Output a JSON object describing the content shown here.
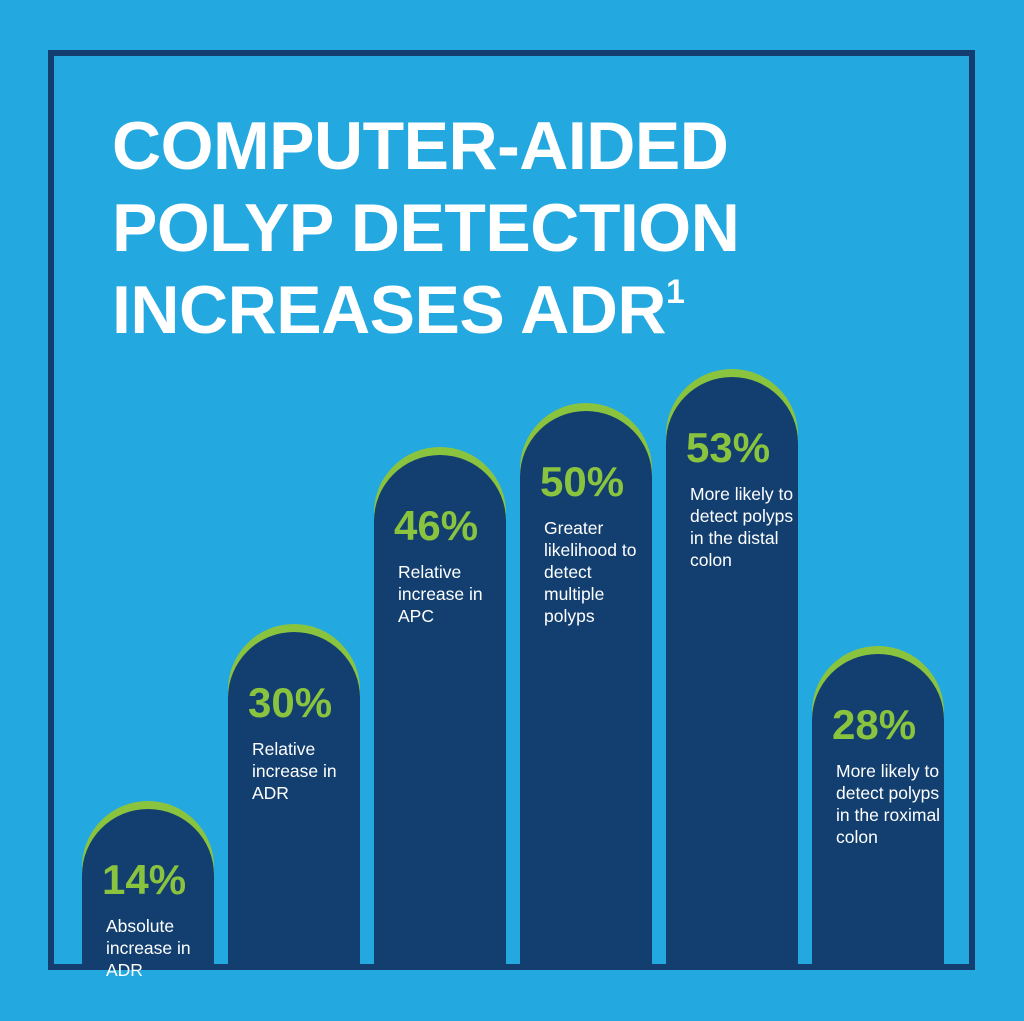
{
  "title": {
    "line1": "COMPUTER-AIDED",
    "line2": "POLYP DETECTION",
    "line3": "INCREASES ADR",
    "superscript": "1"
  },
  "colors": {
    "background": "#24a8e0",
    "frame": "#143e6f",
    "bar": "#123f70",
    "accent": "#8ac43f",
    "text": "#ffffff"
  },
  "chart_data": {
    "type": "bar",
    "title": "COMPUTER-AIDED POLYP DETECTION INCREASES ADR1",
    "categories": [
      "Absolute increase in ADR",
      "Relative increase in ADR",
      "Relative increase in APC",
      "Greater likelihood to detect multiple polyps",
      "More likely to detect polyps in the distal colon",
      "More likely to detect polyps in the roximal colon"
    ],
    "values": [
      14,
      30,
      46,
      50,
      53,
      28
    ],
    "value_labels": [
      "14%",
      "30%",
      "46%",
      "50%",
      "53%",
      "28%"
    ],
    "ylim": [
      0,
      60
    ]
  }
}
